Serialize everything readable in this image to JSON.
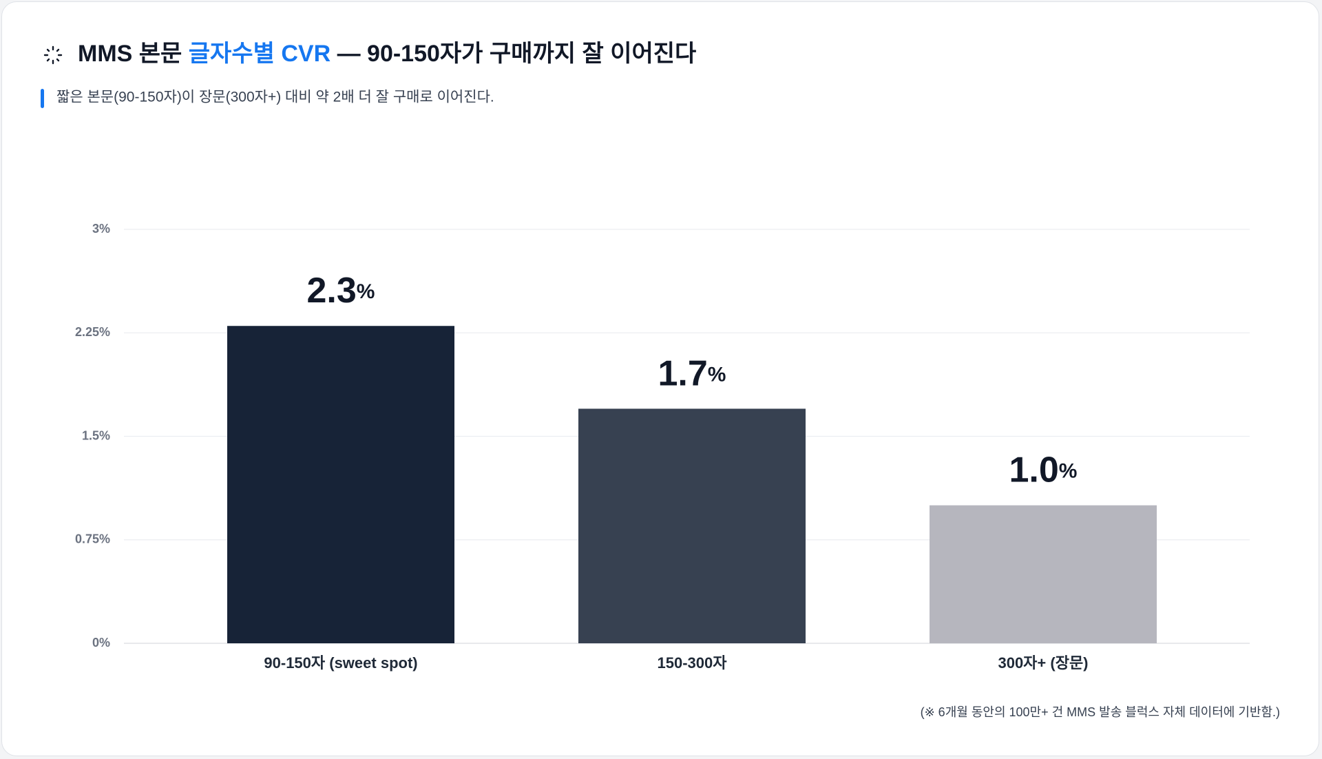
{
  "chart_data": {
    "type": "bar",
    "title": {
      "prefix": "MMS 본문 ",
      "highlight": "글자수별 CVR",
      "suffix": " — 90-150자가 구매까지 잘 이어진다"
    },
    "subtitle": "짧은 본문(90-150자)이 장문(300자+) 대비 약 2배 더 잘 구매로 이어진다.",
    "footnote": "(※ 6개월 동안의 100만+ 건 MMS 발송 블럭스 자체 데이터에 기반함.)",
    "categories": [
      "90-150자 (sweet spot)",
      "150-300자",
      "300자+ (장문)"
    ],
    "values": [
      2.3,
      1.7,
      1.0
    ],
    "value_labels": [
      "2.3%",
      "1.7%",
      "1.0%"
    ],
    "colors": [
      "#172337",
      "#374151",
      "#b6b6be"
    ],
    "ylim": [
      0,
      3
    ],
    "yticks": [
      {
        "value": 0,
        "label": "0%"
      },
      {
        "value": 0.75,
        "label": "0.75%"
      },
      {
        "value": 1.5,
        "label": "1.5%"
      },
      {
        "value": 2.25,
        "label": "2.25%"
      },
      {
        "value": 3,
        "label": "3%"
      }
    ],
    "grid": true
  }
}
